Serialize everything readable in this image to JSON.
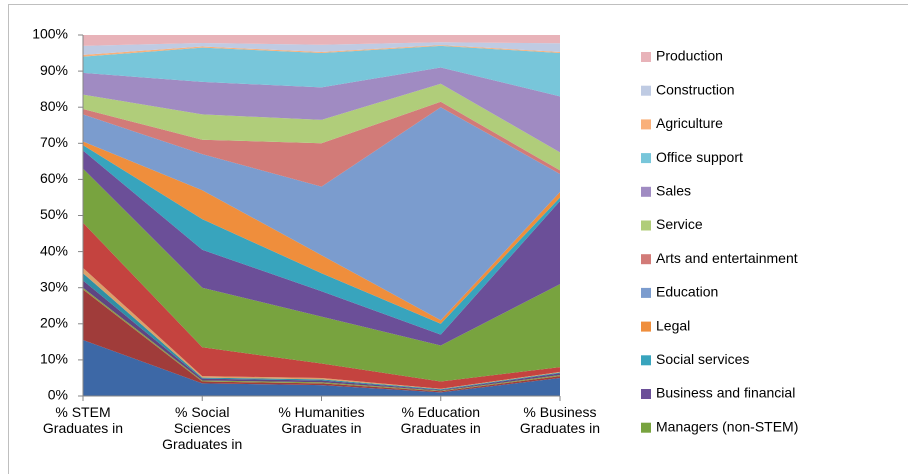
{
  "chart_data": {
    "type": "stacked_area_100",
    "categories": [
      "% STEM\nGraduates in",
      "% Social\nSciences\nGraduates in",
      "% Humanities\nGraduates in",
      "% Education\nGraduates in",
      "% Business\nGraduates in"
    ],
    "ylim": [
      0,
      100
    ],
    "yticks": [
      {
        "value": 0,
        "label": "0%"
      },
      {
        "value": 10,
        "label": "10%"
      },
      {
        "value": 20,
        "label": "20%"
      },
      {
        "value": 30,
        "label": "30%"
      },
      {
        "value": 40,
        "label": "40%"
      },
      {
        "value": 50,
        "label": "50%"
      },
      {
        "value": 60,
        "label": "60%"
      },
      {
        "value": 70,
        "label": "70%"
      },
      {
        "value": 80,
        "label": "80%"
      },
      {
        "value": 90,
        "label": "90%"
      },
      {
        "value": 100,
        "label": "100%"
      }
    ],
    "grid": false,
    "legend": "right",
    "series": [
      {
        "color": "#3d68a6",
        "values": [
          15.5,
          3.5,
          3,
          1,
          5
        ]
      },
      {
        "color": "#a03c3a",
        "values": [
          14,
          0.5,
          0.5,
          0.3,
          0.5
        ]
      },
      {
        "color": "#8c9c45",
        "values": [
          0.5,
          0.3,
          0.3,
          0.2,
          0.3
        ]
      },
      {
        "color": "#5f4582",
        "values": [
          2,
          0.5,
          0.5,
          0.2,
          0.5
        ]
      },
      {
        "color": "#2f8fa5",
        "values": [
          2,
          0.3,
          0.3,
          0.2,
          0.2
        ]
      },
      {
        "color": "#dca06a",
        "values": [
          1.5,
          0.4,
          0.4,
          0.1,
          0.2
        ]
      },
      {
        "color": "#c4433f",
        "values": [
          12.5,
          8,
          4,
          2,
          1.3
        ]
      },
      {
        "name": "Managers (non-STEM)",
        "color": "#78a33f",
        "values": [
          15,
          16.5,
          13,
          10,
          23
        ]
      },
      {
        "name": "Business and financial",
        "color": "#6b4f98",
        "values": [
          5,
          10.5,
          7,
          3,
          23
        ]
      },
      {
        "name": "Social services",
        "color": "#38a4bd",
        "values": [
          1.5,
          8.5,
          5,
          3,
          1
        ]
      },
      {
        "name": "Legal",
        "color": "#ef8e3c",
        "values": [
          1,
          8,
          5,
          1,
          1.5
        ]
      },
      {
        "name": "Education",
        "color": "#7b9cce",
        "values": [
          7.5,
          10,
          19,
          59,
          5
        ]
      },
      {
        "name": "Arts and entertainment",
        "color": "#d27b78",
        "values": [
          1.5,
          4,
          12,
          1.5,
          1
        ]
      },
      {
        "name": "Service",
        "color": "#b0cd7a",
        "values": [
          4,
          7,
          6.5,
          5,
          5
        ]
      },
      {
        "name": "Sales",
        "color": "#a08bc2",
        "values": [
          6,
          9,
          9,
          4.5,
          15.5
        ]
      },
      {
        "name": "Office support",
        "color": "#78c6da",
        "values": [
          4.5,
          9.5,
          9.5,
          6,
          12
        ]
      },
      {
        "name": "Agriculture",
        "color": "#f9b07a",
        "values": [
          0.5,
          0.3,
          0.3,
          0.2,
          0.3
        ]
      },
      {
        "name": "Construction",
        "color": "#bfcbe3",
        "values": [
          2.5,
          1,
          2,
          0.8,
          2.4
        ]
      },
      {
        "name": "Production",
        "color": "#e8b3b9",
        "values": [
          3,
          2.2,
          2.7,
          2,
          2.3
        ]
      }
    ]
  }
}
